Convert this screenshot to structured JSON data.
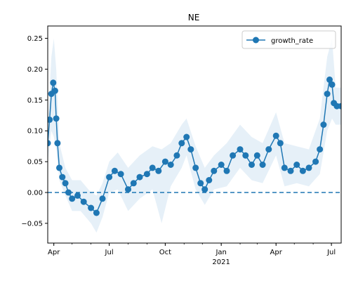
{
  "chart_data": {
    "type": "line",
    "title": "NE",
    "xlabel": "",
    "ylabel": "",
    "x_ticks": [
      {
        "date": "2020-04-01",
        "label": "Apr"
      },
      {
        "date": "2020-07-01",
        "label": "Jul"
      },
      {
        "date": "2020-10-01",
        "label": "Oct"
      },
      {
        "date": "2021-01-01",
        "label": "Jan"
      },
      {
        "date": "2021-04-01",
        "label": "Apr"
      },
      {
        "date": "2021-07-01",
        "label": "Jul"
      }
    ],
    "x_year_label": "2021",
    "xlim": [
      "2020-03-22",
      "2021-07-17"
    ],
    "y_ticks": [
      -0.05,
      0.0,
      0.05,
      0.1,
      0.15,
      0.2,
      0.25
    ],
    "y_tick_labels": [
      "−0.05",
      "0.00",
      "0.05",
      "0.10",
      "0.15",
      "0.20",
      "0.25"
    ],
    "ylim": [
      -0.082,
      0.27
    ],
    "reference_line": {
      "y": 0.0,
      "style": "dashed"
    },
    "legend": {
      "position": "top-right",
      "entries": [
        "growth_rate"
      ]
    },
    "colors": {
      "line": "#1f77b4",
      "band": "#d6e6f4",
      "reference": "#1f77b4"
    },
    "series": [
      {
        "name": "growth_rate",
        "marker": "circle",
        "points": [
          [
            "2020-03-22",
            0.08
          ],
          [
            "2020-03-25",
            0.118
          ],
          [
            "2020-03-28",
            0.16
          ],
          [
            "2020-03-31",
            0.178
          ],
          [
            "2020-04-03",
            0.165
          ],
          [
            "2020-04-05",
            0.12
          ],
          [
            "2020-04-07",
            0.08
          ],
          [
            "2020-04-10",
            0.04
          ],
          [
            "2020-04-15",
            0.025
          ],
          [
            "2020-04-20",
            0.015
          ],
          [
            "2020-04-25",
            0.0
          ],
          [
            "2020-05-01",
            -0.01
          ],
          [
            "2020-05-10",
            -0.005
          ],
          [
            "2020-05-20",
            -0.015
          ],
          [
            "2020-06-01",
            -0.025
          ],
          [
            "2020-06-10",
            -0.033
          ],
          [
            "2020-06-20",
            -0.01
          ],
          [
            "2020-07-01",
            0.025
          ],
          [
            "2020-07-10",
            0.035
          ],
          [
            "2020-07-20",
            0.03
          ],
          [
            "2020-08-01",
            0.005
          ],
          [
            "2020-08-10",
            0.015
          ],
          [
            "2020-08-20",
            0.025
          ],
          [
            "2020-09-01",
            0.03
          ],
          [
            "2020-09-10",
            0.04
          ],
          [
            "2020-09-20",
            0.035
          ],
          [
            "2020-10-01",
            0.05
          ],
          [
            "2020-10-10",
            0.045
          ],
          [
            "2020-10-20",
            0.06
          ],
          [
            "2020-10-28",
            0.08
          ],
          [
            "2020-11-05",
            0.09
          ],
          [
            "2020-11-12",
            0.07
          ],
          [
            "2020-11-20",
            0.04
          ],
          [
            "2020-11-28",
            0.015
          ],
          [
            "2020-12-05",
            0.005
          ],
          [
            "2020-12-12",
            0.02
          ],
          [
            "2020-12-20",
            0.035
          ],
          [
            "2021-01-01",
            0.045
          ],
          [
            "2021-01-10",
            0.035
          ],
          [
            "2021-01-20",
            0.06
          ],
          [
            "2021-02-01",
            0.07
          ],
          [
            "2021-02-10",
            0.06
          ],
          [
            "2021-02-20",
            0.045
          ],
          [
            "2021-03-01",
            0.06
          ],
          [
            "2021-03-10",
            0.045
          ],
          [
            "2021-03-20",
            0.07
          ],
          [
            "2021-04-01",
            0.092
          ],
          [
            "2021-04-08",
            0.08
          ],
          [
            "2021-04-15",
            0.04
          ],
          [
            "2021-04-25",
            0.035
          ],
          [
            "2021-05-05",
            0.045
          ],
          [
            "2021-05-15",
            0.035
          ],
          [
            "2021-05-25",
            0.04
          ],
          [
            "2021-06-05",
            0.05
          ],
          [
            "2021-06-12",
            0.07
          ],
          [
            "2021-06-18",
            0.11
          ],
          [
            "2021-06-24",
            0.16
          ],
          [
            "2021-06-28",
            0.183
          ],
          [
            "2021-07-02",
            0.175
          ],
          [
            "2021-07-05",
            0.145
          ],
          [
            "2021-07-10",
            0.14
          ],
          [
            "2021-07-17",
            0.14
          ]
        ],
        "band": [
          [
            "2020-03-22",
            0.05,
            0.11
          ],
          [
            "2020-03-28",
            0.1,
            0.22
          ],
          [
            "2020-04-01",
            0.09,
            0.25
          ],
          [
            "2020-04-05",
            0.07,
            0.2
          ],
          [
            "2020-04-10",
            0.02,
            0.08
          ],
          [
            "2020-04-20",
            -0.005,
            0.04
          ],
          [
            "2020-05-01",
            -0.03,
            0.02
          ],
          [
            "2020-05-15",
            -0.03,
            0.02
          ],
          [
            "2020-06-01",
            -0.05,
            0.0
          ],
          [
            "2020-06-10",
            -0.065,
            -0.005
          ],
          [
            "2020-06-20",
            -0.04,
            0.015
          ],
          [
            "2020-07-01",
            0.0,
            0.05
          ],
          [
            "2020-07-15",
            0.005,
            0.065
          ],
          [
            "2020-08-01",
            -0.03,
            0.04
          ],
          [
            "2020-08-20",
            -0.01,
            0.06
          ],
          [
            "2020-09-10",
            0.005,
            0.075
          ],
          [
            "2020-09-25",
            -0.05,
            0.07
          ],
          [
            "2020-10-10",
            0.01,
            0.08
          ],
          [
            "2020-10-28",
            0.04,
            0.11
          ],
          [
            "2020-11-05",
            0.06,
            0.12
          ],
          [
            "2020-11-20",
            0.005,
            0.075
          ],
          [
            "2020-12-05",
            -0.02,
            0.04
          ],
          [
            "2020-12-20",
            0.005,
            0.06
          ],
          [
            "2021-01-10",
            0.01,
            0.08
          ],
          [
            "2021-02-01",
            0.04,
            0.11
          ],
          [
            "2021-02-20",
            0.02,
            0.09
          ],
          [
            "2021-03-10",
            0.015,
            0.08
          ],
          [
            "2021-04-01",
            0.06,
            0.13
          ],
          [
            "2021-04-15",
            0.01,
            0.08
          ],
          [
            "2021-05-05",
            0.015,
            0.075
          ],
          [
            "2021-05-25",
            0.01,
            0.07
          ],
          [
            "2021-06-12",
            0.03,
            0.12
          ],
          [
            "2021-06-24",
            0.1,
            0.22
          ],
          [
            "2021-07-02",
            0.12,
            0.25
          ],
          [
            "2021-07-08",
            0.11,
            0.17
          ],
          [
            "2021-07-17",
            0.11,
            0.17
          ]
        ]
      }
    ]
  }
}
